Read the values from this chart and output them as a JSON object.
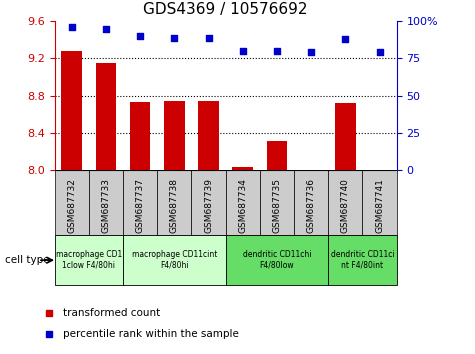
{
  "title": "GDS4369 / 10576692",
  "samples": [
    "GSM687732",
    "GSM687733",
    "GSM687737",
    "GSM687738",
    "GSM687739",
    "GSM687734",
    "GSM687735",
    "GSM687736",
    "GSM687740",
    "GSM687741"
  ],
  "bar_values": [
    9.28,
    9.15,
    8.73,
    8.74,
    8.74,
    8.03,
    8.31,
    8.0,
    8.72,
    8.0
  ],
  "scatter_values": [
    96,
    95,
    90,
    89,
    89,
    80,
    80,
    79,
    88,
    79
  ],
  "ylim_left": [
    8.0,
    9.6
  ],
  "ylim_right": [
    0,
    100
  ],
  "yticks_left": [
    8.0,
    8.4,
    8.8,
    9.2,
    9.6
  ],
  "yticks_right": [
    0,
    25,
    50,
    75,
    100
  ],
  "ytick_labels_right": [
    "0",
    "25",
    "50",
    "75",
    "100%"
  ],
  "bar_color": "#cc0000",
  "scatter_color": "#0000cc",
  "dotted_lines": [
    8.4,
    8.8,
    9.2
  ],
  "group_starts": [
    0,
    2,
    5,
    8
  ],
  "group_ends": [
    2,
    5,
    8,
    10
  ],
  "group_labels": [
    "macrophage CD1\n1clow F4/80hi",
    "macrophage CD11cint\nF4/80hi",
    "dendritic CD11chi\nF4/80low",
    "dendritic CD11ci\nnt F4/80int"
  ],
  "group_colors": [
    "#ccffcc",
    "#ccffcc",
    "#66dd66",
    "#66dd66"
  ],
  "legend_labels": [
    "transformed count",
    "percentile rank within the sample"
  ],
  "legend_colors": [
    "#cc0000",
    "#0000cc"
  ],
  "cell_type_label": "cell type",
  "left_axis_color": "#cc0000",
  "right_axis_color": "#0000cc",
  "xtick_bg_color": "#cccccc",
  "title_fontsize": 11,
  "tick_fontsize": 8,
  "sample_fontsize": 6.5
}
